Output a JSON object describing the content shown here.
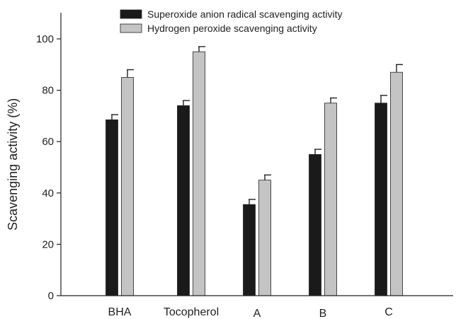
{
  "chart_data": {
    "type": "bar",
    "title": "",
    "xlabel": "",
    "ylabel": "Scavenging activity (%)",
    "ylim": [
      0,
      110
    ],
    "yticks": [
      0,
      20,
      40,
      60,
      80,
      100
    ],
    "categories": [
      "BHA",
      "Tocopherol",
      "A",
      "B",
      "C"
    ],
    "series": [
      {
        "name": "Superoxide anion radical scavenging activity",
        "color": "#1a1a1a",
        "values": [
          68.5,
          74,
          35.5,
          55,
          75
        ],
        "errors": [
          2,
          2,
          2,
          2,
          3
        ]
      },
      {
        "name": "Hydrogen peroxide scavenging activity",
        "color": "#c4c4c4",
        "values": [
          85,
          95,
          45,
          75,
          87
        ],
        "errors": [
          3,
          2,
          2,
          2,
          3
        ]
      }
    ],
    "legend_position": "top-center",
    "grid": false,
    "error_bars": "upper"
  }
}
